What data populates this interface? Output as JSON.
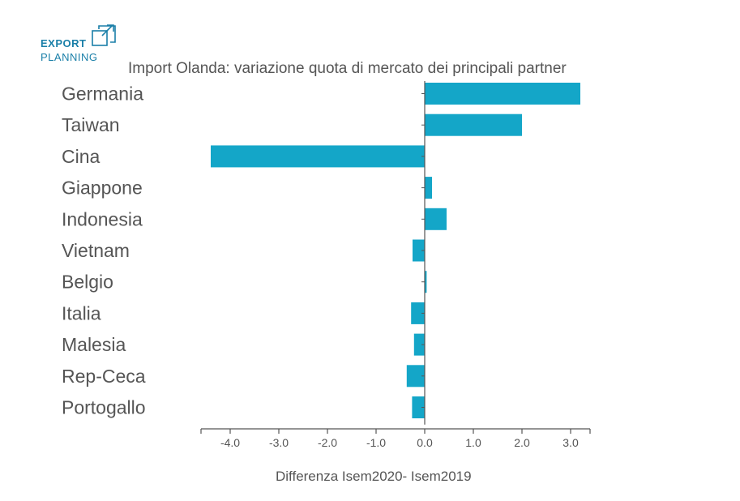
{
  "logo": {
    "word1": "EXPORT",
    "word2": "PLANNING",
    "icon": "export-planning-logo-icon"
  },
  "colors": {
    "bar": "#14a6c8",
    "axis": "#555555",
    "text": "#555555",
    "logo": "#1a7fa8"
  },
  "chart_data": {
    "type": "bar",
    "orientation": "horizontal",
    "title": "Import Olanda: variazione quota di mercato dei principali partner",
    "xlabel": "Differenza Isem2020- Isem2019",
    "ylabel": "",
    "categories": [
      "Germania",
      "Taiwan",
      "Cina",
      "Giappone",
      "Indonesia",
      "Vietnam",
      "Belgio",
      "Italia",
      "Malesia",
      "Rep-Ceca",
      "Portogallo"
    ],
    "values": [
      3.2,
      2.0,
      -4.4,
      0.15,
      0.45,
      -0.25,
      0.04,
      -0.28,
      -0.22,
      -0.37,
      -0.26
    ],
    "xlim": [
      -4.6,
      3.4
    ],
    "xticks": [
      -4.0,
      -3.0,
      -2.0,
      -1.0,
      0.0,
      1.0,
      2.0,
      3.0
    ],
    "xtick_labels": [
      "-4.0",
      "-3.0",
      "-2.0",
      "-1.0",
      "0.0",
      "1.0",
      "2.0",
      "3.0"
    ],
    "grid": false,
    "legend": "none"
  }
}
